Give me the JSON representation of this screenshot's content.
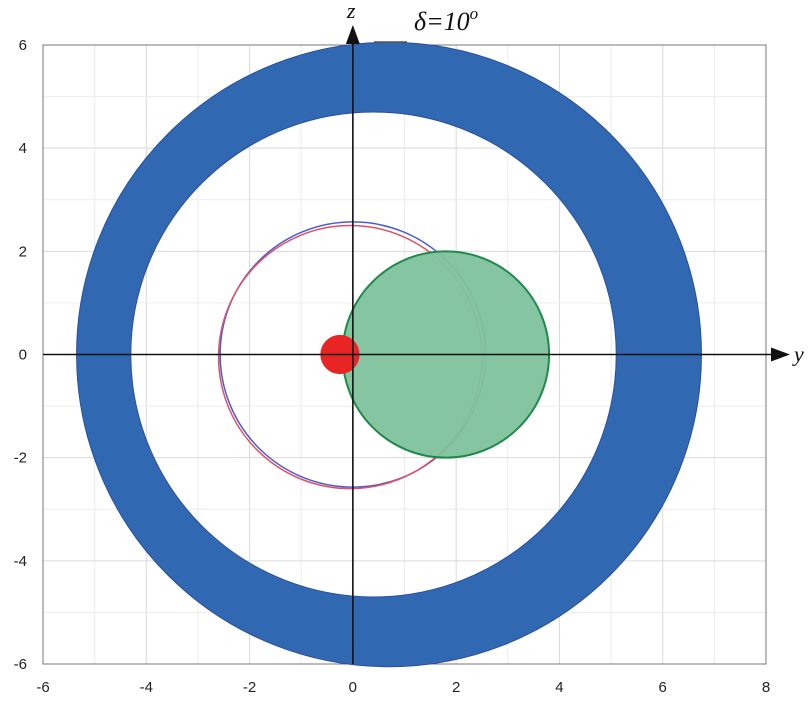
{
  "chart_data": {
    "type": "scatter",
    "title": "",
    "annotation": {
      "symbol": "δ",
      "text": "=10",
      "superscript": "o"
    },
    "xlabel": "y",
    "ylabel": "z",
    "xlim": [
      -6,
      8
    ],
    "ylim": [
      -6,
      6
    ],
    "x_ticks": [
      "-6",
      "-4",
      "-2",
      "0",
      "2",
      "4",
      "6",
      "8"
    ],
    "y_ticks": [
      "-6",
      "-4",
      "-2",
      "0",
      "2",
      "4",
      "6"
    ],
    "x_tick_values": [
      -6,
      -4,
      -2,
      0,
      2,
      4,
      6,
      8
    ],
    "y_tick_values": [
      -6,
      -4,
      -2,
      0,
      2,
      4,
      6
    ],
    "grid": true,
    "shapes": [
      {
        "name": "outer-ring",
        "kind": "annulus",
        "outer": {
          "cx": 0.7,
          "cy": 0,
          "r": 6.05
        },
        "inner": {
          "cx": 0.4,
          "cy": 0,
          "r": 4.7
        },
        "color": "#3068b2"
      },
      {
        "name": "orbit-blue",
        "kind": "circle",
        "cx": 0.0,
        "cy": 0.0,
        "r": 2.57,
        "stroke": "#4a5ed0",
        "fill": "none"
      },
      {
        "name": "orbit-red",
        "kind": "circle",
        "cx": -0.05,
        "cy": -0.05,
        "r": 2.55,
        "stroke": "#e0506a",
        "fill": "none"
      },
      {
        "name": "green-disk",
        "kind": "circle",
        "cx": 1.8,
        "cy": 0.0,
        "r": 2.0,
        "stroke": "#1f8a4a",
        "fill": "#7fc29c"
      },
      {
        "name": "red-dot",
        "kind": "circle",
        "cx": -0.25,
        "cy": 0.0,
        "r": 0.38,
        "stroke": "none",
        "fill": "#e82424"
      }
    ]
  }
}
